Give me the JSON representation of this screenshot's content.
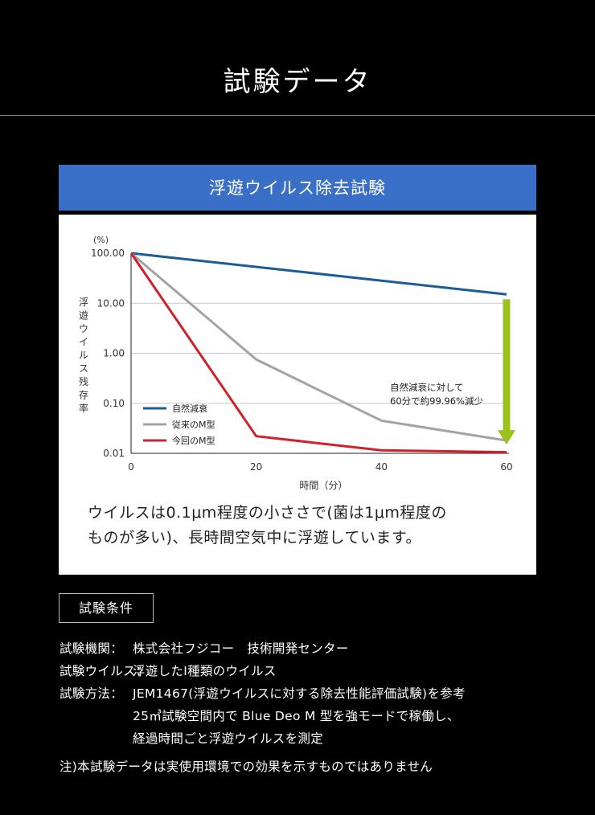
{
  "page": {
    "title": "試験データ"
  },
  "test_panel": {
    "title": "浮遊ウイルス除去試験",
    "note_lines": [
      "ウイルスは0.1μm程度の小ささで(菌は1μm程度の",
      "ものが多い)、長時間空気中に浮遊しています。"
    ]
  },
  "chart_data": {
    "type": "line",
    "y_unit": "(%)",
    "ylabel": "浮遊ウイルス残存率",
    "xlabel": "時間（分）",
    "y_scale": "log",
    "ylim": [
      0.01,
      100
    ],
    "y_ticks": [
      "100.00",
      "10.00",
      "1.00",
      "0.10",
      "0.01"
    ],
    "y_tick_values": [
      100,
      10,
      1,
      0.1,
      0.01
    ],
    "x_ticks": [
      "0",
      "20",
      "40",
      "60"
    ],
    "x_tick_values": [
      0,
      20,
      40,
      60
    ],
    "xlim": [
      0,
      60
    ],
    "grid": true,
    "legend_position": "bottom-left",
    "series": [
      {
        "name": "自然減衰",
        "color": "#1a5b9a",
        "x": [
          0,
          60
        ],
        "y": [
          100,
          15
        ]
      },
      {
        "name": "従来のM型",
        "color": "#a3a3a3",
        "x": [
          0,
          20,
          40,
          60
        ],
        "y": [
          100,
          0.75,
          0.045,
          0.018
        ]
      },
      {
        "name": "今回のM型",
        "color": "#d0202a",
        "x": [
          0,
          20,
          40,
          60
        ],
        "y": [
          100,
          0.022,
          0.0115,
          0.0105
        ]
      }
    ],
    "annotation": {
      "lines": [
        "自然減衰に対して",
        "60分で約99.96%減少"
      ],
      "arrow_color": "#99c21c",
      "arrow_x": 60,
      "arrow_from": 12,
      "arrow_to": 0.0155
    }
  },
  "conditions": {
    "title": "試験条件",
    "items": [
      {
        "label": "試験機関：",
        "lines": [
          "株式会社フジコー　技術開発センター"
        ]
      },
      {
        "label": "試験ウイルス：",
        "lines": [
          "浮遊したⅠ種類のウイルス"
        ]
      },
      {
        "label": "試験方法：",
        "lines": [
          "JEM1467(浮遊ウイルスに対する除去性能評価試験)を参考",
          "25㎥試験空間内で Blue Deo M 型を強モードで稼働し、",
          "経過時間ごと浮遊ウイルスを測定"
        ]
      }
    ],
    "footnote": "注)本試験データは実使用環境での効果を示すものではありません"
  }
}
